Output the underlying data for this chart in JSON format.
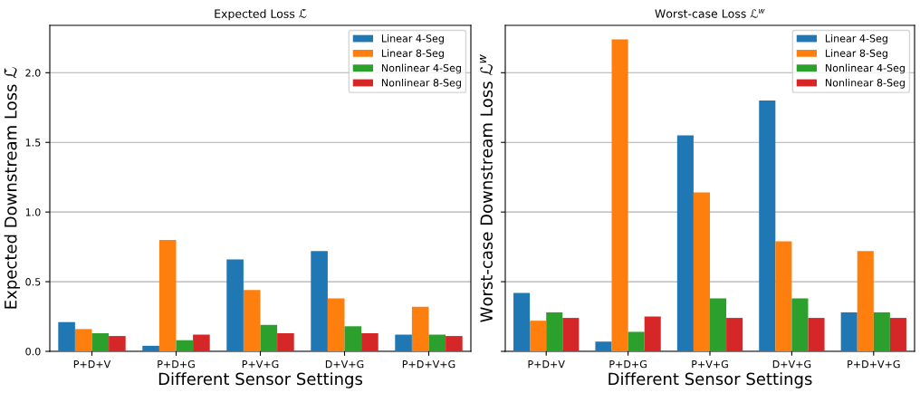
{
  "chart_data": [
    {
      "type": "bar",
      "title": "Expected Loss ℒ̄",
      "xlabel": "Different Sensor Settings",
      "ylabel": "Expected Downstream Loss ℒ̄",
      "categories": [
        "P+D+V",
        "P+D+G",
        "P+V+G",
        "D+V+G",
        "P+D+V+G"
      ],
      "series": [
        {
          "name": "Linear 4-Seg",
          "color": "#1f77b4",
          "values": [
            0.21,
            0.04,
            0.66,
            0.72,
            0.12
          ]
        },
        {
          "name": "Linear 8-Seg",
          "color": "#ff7f0e",
          "values": [
            0.16,
            0.8,
            0.44,
            0.38,
            0.32
          ]
        },
        {
          "name": "Nonlinear 4-Seg",
          "color": "#2ca02c",
          "values": [
            0.13,
            0.08,
            0.19,
            0.18,
            0.12
          ]
        },
        {
          "name": "Nonlinear 8-Seg",
          "color": "#d62728",
          "values": [
            0.11,
            0.12,
            0.13,
            0.13,
            0.11
          ]
        }
      ],
      "ylim": [
        0,
        2.34
      ],
      "yticks": [
        {
          "value": 0,
          "label": "0.0"
        },
        {
          "value": 0.5,
          "label": "0.5"
        },
        {
          "value": 1,
          "label": "1.0"
        },
        {
          "value": 1.5,
          "label": "1.5"
        },
        {
          "value": 2,
          "label": "2.0"
        }
      ],
      "grid": "y",
      "legend": "top right"
    },
    {
      "type": "bar",
      "title": "Worst-case Loss ℒ$^{w}$",
      "xlabel": "Different Sensor Settings",
      "ylabel": "Worst-case Downstream Loss ℒ$^{w}$",
      "categories": [
        "P+D+V",
        "P+D+G",
        "P+V+G",
        "D+V+G",
        "P+D+V+G"
      ],
      "series": [
        {
          "name": "Linear 4-Seg",
          "color": "#1f77b4",
          "values": [
            0.42,
            0.07,
            1.55,
            1.8,
            0.28
          ]
        },
        {
          "name": "Linear 8-Seg",
          "color": "#ff7f0e",
          "values": [
            0.22,
            2.24,
            1.14,
            0.79,
            0.72
          ]
        },
        {
          "name": "Nonlinear 4-Seg",
          "color": "#2ca02c",
          "values": [
            0.28,
            0.14,
            0.38,
            0.38,
            0.28
          ]
        },
        {
          "name": "Nonlinear 8-Seg",
          "color": "#d62728",
          "values": [
            0.24,
            0.25,
            0.24,
            0.24,
            0.24
          ]
        }
      ],
      "ylim": [
        0,
        2.34
      ],
      "yticks": [
        {
          "value": 0,
          "label": null
        },
        {
          "value": 0.5,
          "label": null
        },
        {
          "value": 1,
          "label": null
        },
        {
          "value": 1.5,
          "label": null
        },
        {
          "value": 2,
          "label": null
        }
      ],
      "grid": "y",
      "legend": "top right",
      "tick_labels": "x"
    }
  ]
}
